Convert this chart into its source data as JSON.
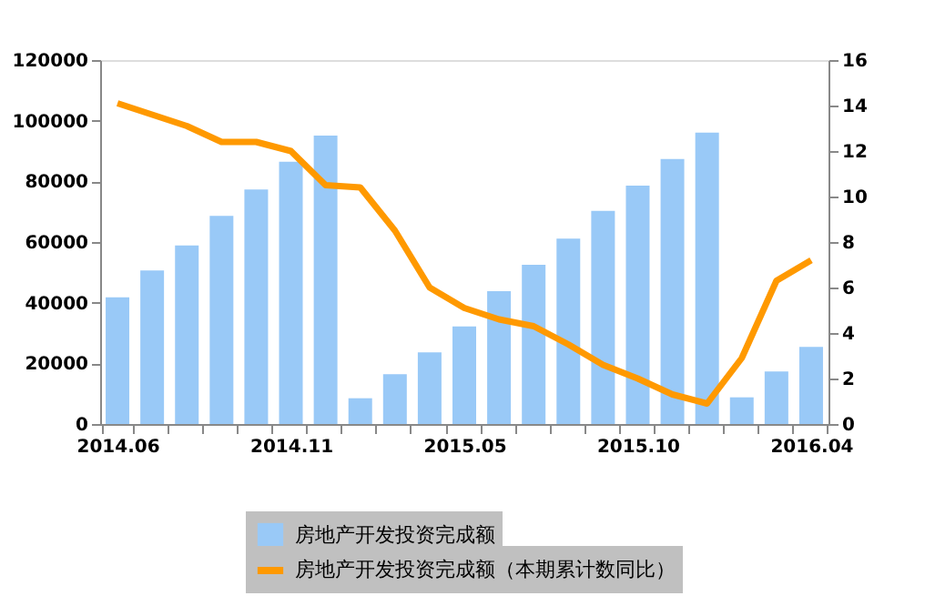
{
  "chart_data": {
    "type": "bar",
    "categories": [
      "2014.06",
      null,
      null,
      null,
      null,
      "2014.11",
      null,
      null,
      null,
      null,
      "2015.05",
      null,
      null,
      null,
      null,
      "2015.10",
      null,
      null,
      null,
      null,
      "2016.04"
    ],
    "series": [
      {
        "name": "房地产开发投资完成额",
        "color": "#99c9f7",
        "values": [
          41800,
          50600,
          58900,
          68600,
          77300,
          86500,
          95100,
          8500,
          16400,
          23600,
          32200,
          43800,
          52500,
          61100,
          70300,
          78600,
          87400,
          96100,
          8800,
          17300,
          25400
        ]
      },
      {
        "name": "房地产开发投资完成额（本期累计数同比）",
        "type": "line",
        "axis": "y2",
        "color": "#ff9900",
        "values": [
          14.1,
          13.6,
          13.1,
          12.4,
          12.4,
          12.0,
          10.5,
          10.4,
          8.5,
          6.0,
          5.1,
          4.6,
          4.3,
          3.5,
          2.6,
          2.0,
          1.3,
          0.9,
          2.9,
          6.3,
          7.2
        ]
      }
    ],
    "ylim": [
      0,
      120000
    ],
    "yticks": [
      0,
      20000,
      40000,
      60000,
      80000,
      100000,
      120000
    ],
    "y2lim": [
      0,
      16
    ],
    "y2ticks": [
      0,
      2,
      4,
      6,
      8,
      10,
      12,
      14,
      16
    ],
    "grid": false,
    "legend": "bottom",
    "marker": "none",
    "line_style": "solid"
  }
}
